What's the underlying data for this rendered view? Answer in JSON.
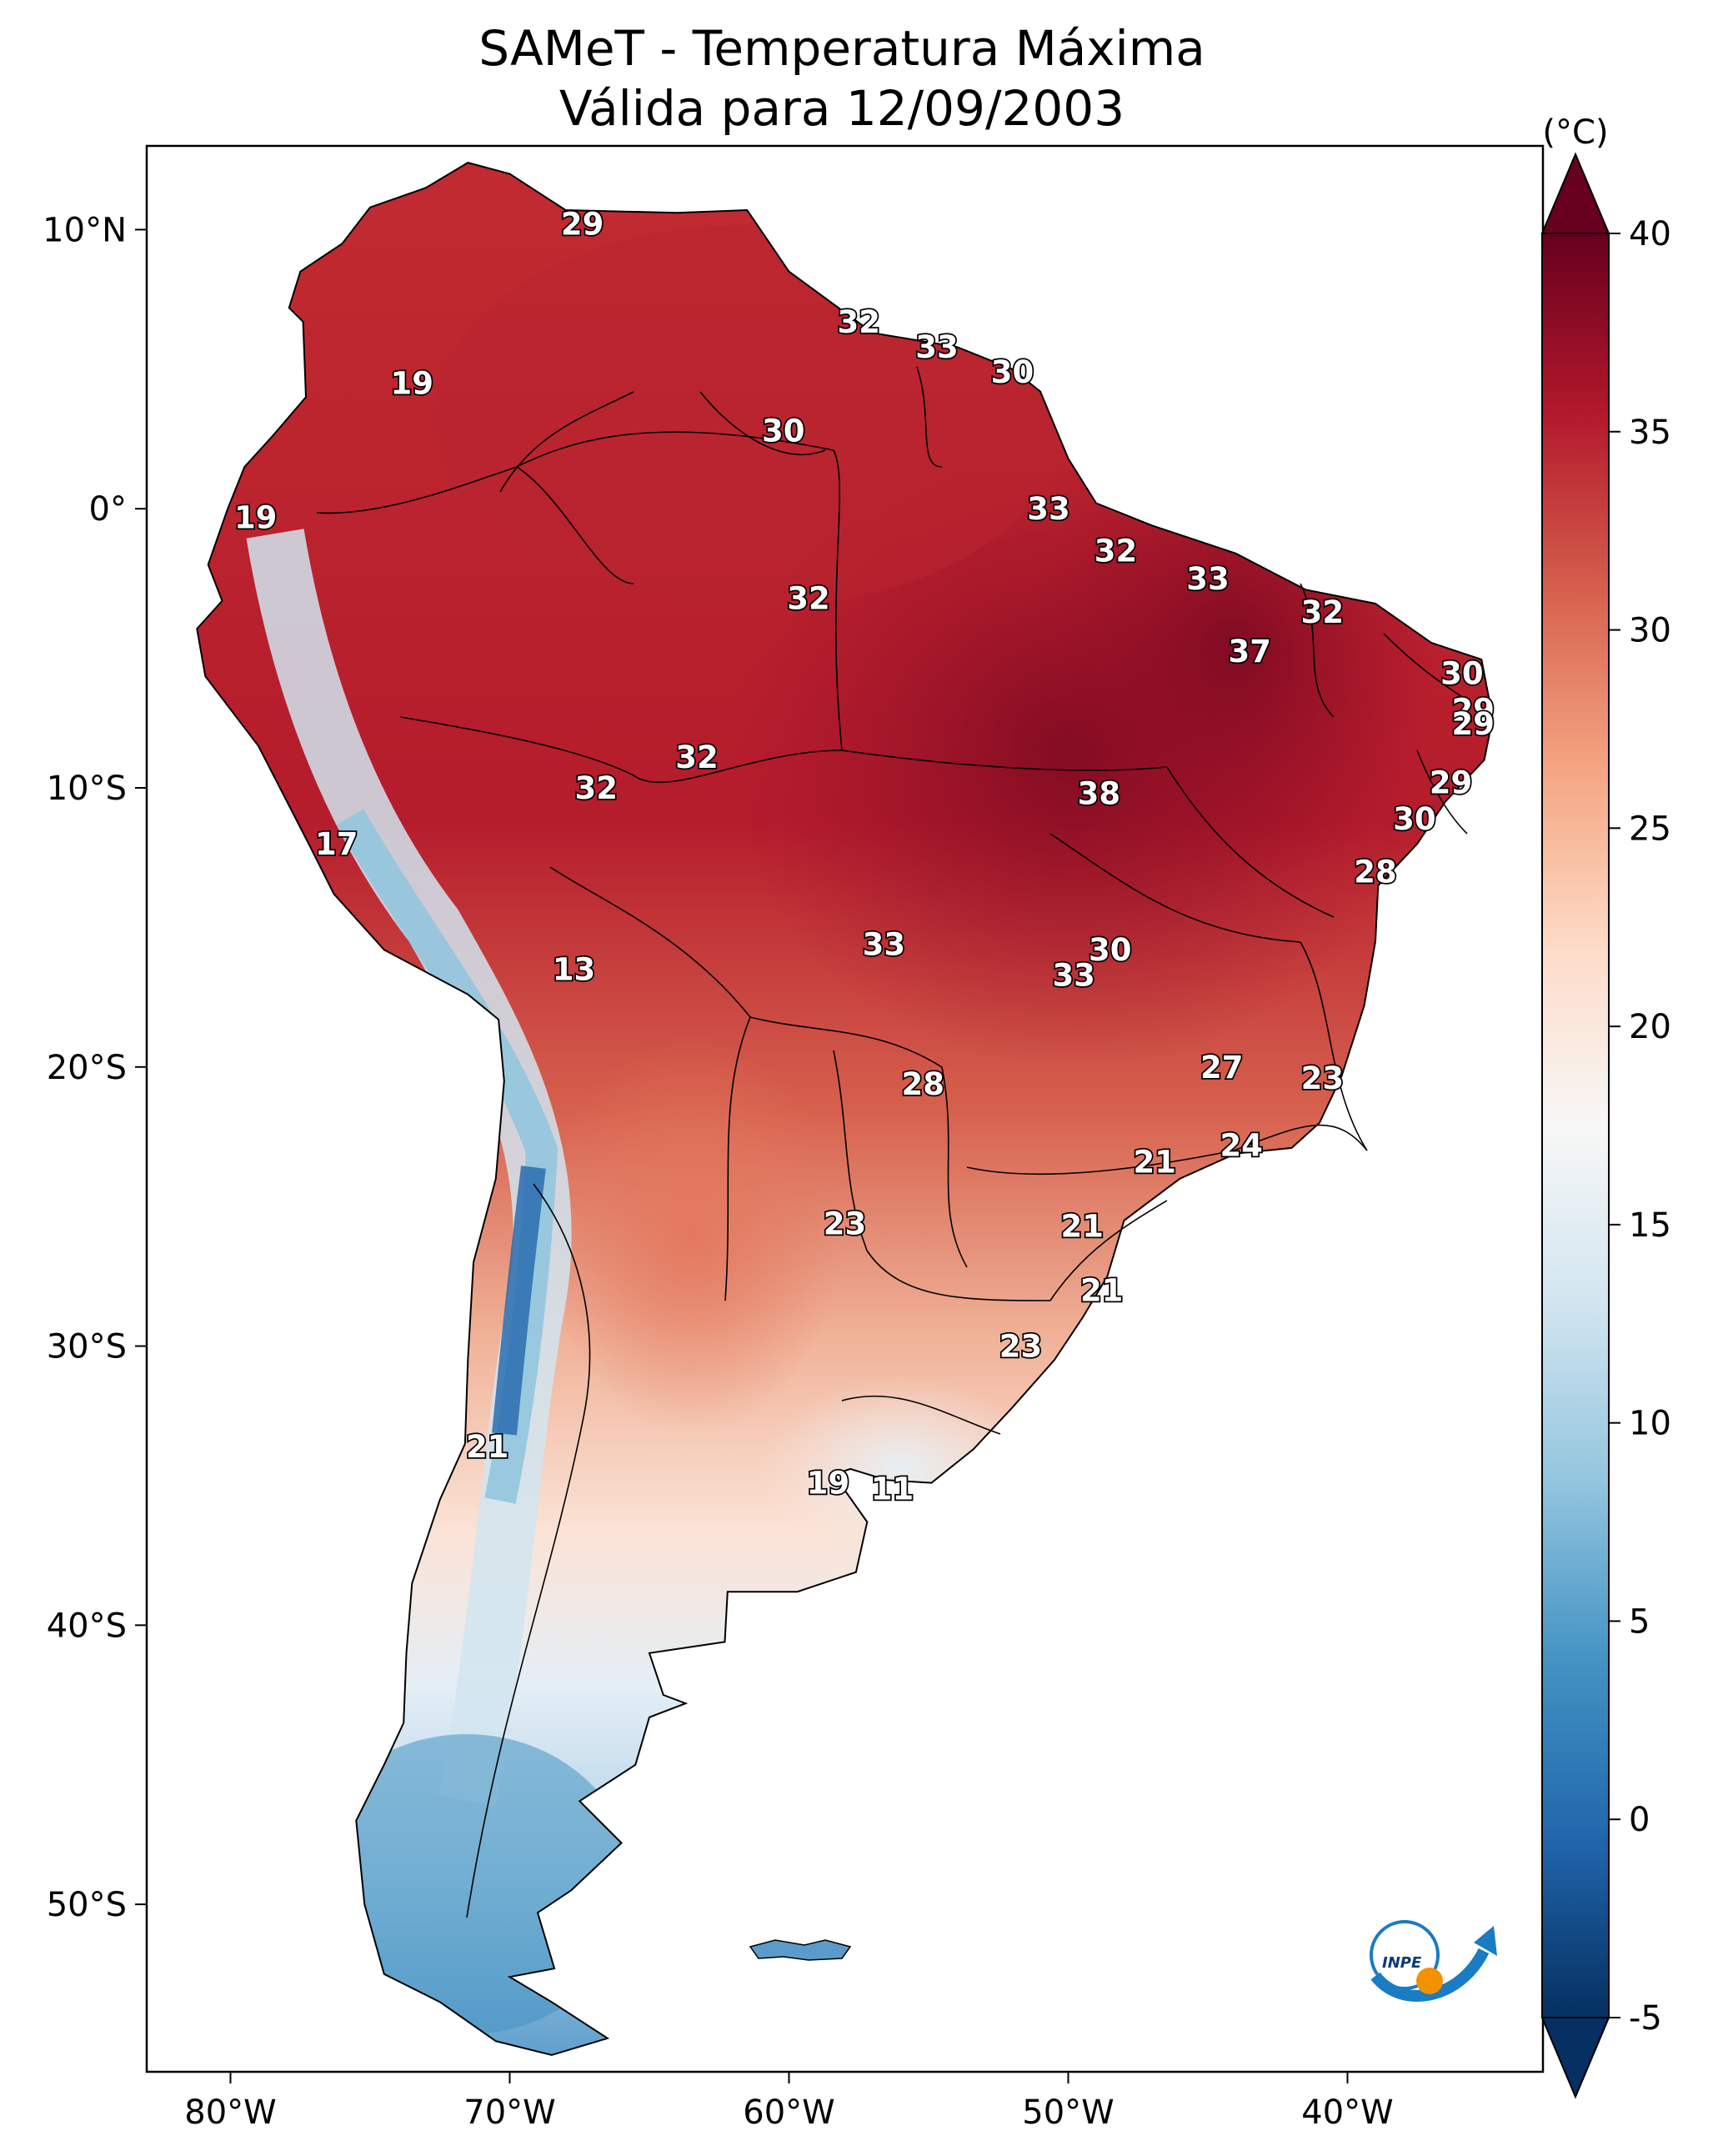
{
  "title": {
    "line1": "SAMeT - Temperatura Máxima",
    "line2": "Válida para 12/09/2003"
  },
  "map": {
    "region": "South America",
    "lon_range": [
      -83,
      -33
    ],
    "lat_range": [
      -56,
      13
    ],
    "lon_ticks": [
      "80°W",
      "70°W",
      "60°W",
      "50°W",
      "40°W"
    ],
    "lat_ticks": [
      "10°N",
      "0°",
      "10°S",
      "20°S",
      "30°S",
      "40°S",
      "50°S"
    ],
    "field_colormap": "RdBu_r (blue = cold, red = hot)"
  },
  "colorbar": {
    "unit_label": "(°C)",
    "range": [
      -5,
      40
    ],
    "tick_labels": [
      "40",
      "35",
      "30",
      "25",
      "20",
      "15",
      "10",
      "5",
      "0",
      "-5"
    ],
    "colors": [
      "#053061",
      "#2166ac",
      "#4393c3",
      "#92c5de",
      "#d1e5f0",
      "#f7f7f7",
      "#fddbc7",
      "#f4a582",
      "#d6604d",
      "#b2182b",
      "#67001f"
    ]
  },
  "value_labels": [
    {
      "text": "29",
      "lon": -67.4,
      "lat": 10.2
    },
    {
      "text": "19",
      "lon": -73.5,
      "lat": 4.5
    },
    {
      "text": "32",
      "lon": -57.5,
      "lat": 6.7
    },
    {
      "text": "33",
      "lon": -54.7,
      "lat": 5.8
    },
    {
      "text": "30",
      "lon": -52.0,
      "lat": 4.9
    },
    {
      "text": "30",
      "lon": -60.2,
      "lat": 2.8
    },
    {
      "text": "19",
      "lon": -79.1,
      "lat": -0.3
    },
    {
      "text": "33",
      "lon": -50.7,
      "lat": 0.0
    },
    {
      "text": "32",
      "lon": -48.3,
      "lat": -1.5
    },
    {
      "text": "33",
      "lon": -45.0,
      "lat": -2.5
    },
    {
      "text": "32",
      "lon": -40.9,
      "lat": -3.7
    },
    {
      "text": "32",
      "lon": -59.3,
      "lat": -3.2
    },
    {
      "text": "37",
      "lon": -43.5,
      "lat": -5.1
    },
    {
      "text": "30",
      "lon": -35.9,
      "lat": -5.9
    },
    {
      "text": "29",
      "lon": -35.5,
      "lat": -7.2
    },
    {
      "text": "29",
      "lon": -35.5,
      "lat": -7.7
    },
    {
      "text": "32",
      "lon": -63.3,
      "lat": -8.9
    },
    {
      "text": "32",
      "lon": -66.9,
      "lat": -10.0
    },
    {
      "text": "38",
      "lon": -48.9,
      "lat": -10.2
    },
    {
      "text": "29",
      "lon": -36.3,
      "lat": -9.8
    },
    {
      "text": "30",
      "lon": -37.6,
      "lat": -11.1
    },
    {
      "text": "17",
      "lon": -76.2,
      "lat": -12.0
    },
    {
      "text": "28",
      "lon": -39.0,
      "lat": -13.0
    },
    {
      "text": "33",
      "lon": -56.6,
      "lat": -15.6
    },
    {
      "text": "30",
      "lon": -48.5,
      "lat": -15.8
    },
    {
      "text": "33",
      "lon": -49.8,
      "lat": -16.7
    },
    {
      "text": "13",
      "lon": -67.7,
      "lat": -16.5
    },
    {
      "text": "28",
      "lon": -55.2,
      "lat": -20.6
    },
    {
      "text": "27",
      "lon": -44.5,
      "lat": -20.0
    },
    {
      "text": "23",
      "lon": -40.9,
      "lat": -20.4
    },
    {
      "text": "24",
      "lon": -43.8,
      "lat": -22.8
    },
    {
      "text": "21",
      "lon": -46.9,
      "lat": -23.4
    },
    {
      "text": "23",
      "lon": -58.0,
      "lat": -25.6
    },
    {
      "text": "21",
      "lon": -49.5,
      "lat": -25.7
    },
    {
      "text": "21",
      "lon": -48.8,
      "lat": -28.0
    },
    {
      "text": "23",
      "lon": -51.7,
      "lat": -30.0
    },
    {
      "text": "21",
      "lon": -70.8,
      "lat": -33.6
    },
    {
      "text": "19",
      "lon": -58.6,
      "lat": -34.9
    },
    {
      "text": "11",
      "lon": -56.3,
      "lat": -35.1
    }
  ]
}
